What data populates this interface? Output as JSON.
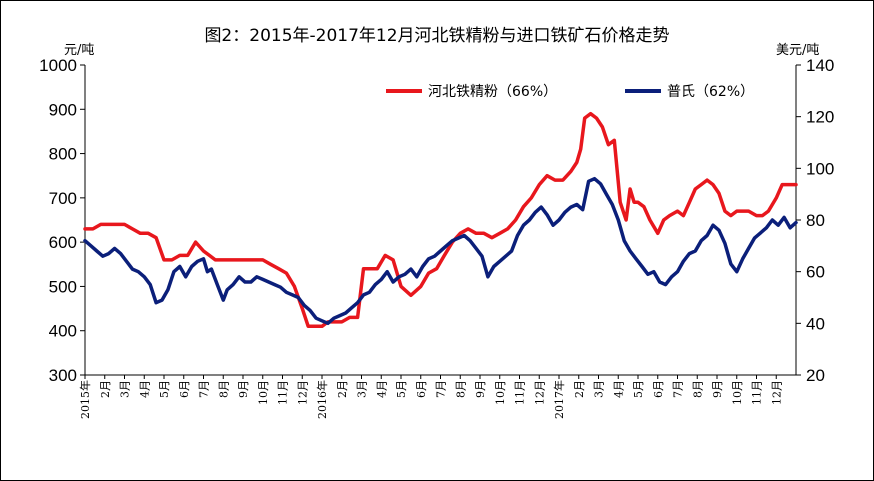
{
  "chart_data": {
    "type": "line",
    "title": "图2：2015年-2017年12月河北铁精粉与进口铁矿石价格走势",
    "left_axis": {
      "unit_label": "元/吨",
      "range": [
        300,
        1000
      ],
      "ticks": [
        "300",
        "400",
        "500",
        "600",
        "700",
        "800",
        "900",
        "1000"
      ]
    },
    "right_axis": {
      "unit_label": "美元/吨",
      "range": [
        20,
        140
      ],
      "ticks": [
        "20",
        "40",
        "60",
        "80",
        "100",
        "120",
        "140"
      ]
    },
    "x_range": [
      0,
      36
    ],
    "x_tick_labels": [
      "2015年",
      "2月",
      "3月",
      "4月",
      "5月",
      "6月",
      "7月",
      "8月",
      "9月",
      "10月",
      "11月",
      "12月",
      "2016年",
      "2月",
      "3月",
      "4月",
      "5月",
      "6月",
      "7月",
      "8月",
      "9月",
      "10月",
      "11月",
      "12月",
      "2017年",
      "2月",
      "3月",
      "4月",
      "5月",
      "6月",
      "7月",
      "8月",
      "9月",
      "10月",
      "11月",
      "12月"
    ],
    "legend_position": "top-right",
    "series": [
      {
        "name": "河北铁精粉（66%）",
        "axis": "left",
        "color": "#e8171d",
        "x": [
          0,
          0.4,
          0.8,
          1.2,
          1.6,
          2,
          2.4,
          2.8,
          3.2,
          3.6,
          4,
          4.4,
          4.8,
          5.2,
          5.6,
          6,
          6.3,
          6.6,
          7,
          7.4,
          7.8,
          8.2,
          8.6,
          9,
          9.4,
          9.8,
          10.2,
          10.6,
          11,
          11.3,
          11.6,
          12,
          12.3,
          12.6,
          13,
          13.4,
          13.8,
          14.1,
          14.5,
          14.8,
          15.2,
          15.6,
          16,
          16.5,
          17,
          17.4,
          17.8,
          18.2,
          18.6,
          19,
          19.4,
          19.8,
          20.2,
          20.6,
          21,
          21.4,
          21.8,
          22.2,
          22.6,
          23,
          23.4,
          23.8,
          24.2,
          24.6,
          24.9,
          25.1,
          25.3,
          25.6,
          25.9,
          26.2,
          26.5,
          26.8,
          27.1,
          27.4,
          27.6,
          27.8,
          28,
          28.3,
          28.6,
          29,
          29.3,
          29.6,
          30,
          30.3,
          30.6,
          30.9,
          31.2,
          31.5,
          31.8,
          32.1,
          32.4,
          32.7,
          33,
          33.3,
          33.6,
          34,
          34.3,
          34.6,
          35,
          35.3,
          35.6,
          36
        ],
        "values": [
          630,
          630,
          640,
          640,
          640,
          640,
          630,
          620,
          620,
          610,
          560,
          560,
          570,
          570,
          600,
          580,
          570,
          560,
          560,
          560,
          560,
          560,
          560,
          560,
          550,
          540,
          530,
          500,
          450,
          410,
          410,
          410,
          420,
          420,
          420,
          430,
          430,
          540,
          540,
          540,
          570,
          560,
          500,
          480,
          500,
          530,
          540,
          570,
          600,
          620,
          630,
          620,
          620,
          610,
          620,
          630,
          650,
          680,
          700,
          730,
          750,
          740,
          740,
          760,
          780,
          810,
          880,
          890,
          880,
          860,
          820,
          830,
          690,
          650,
          720,
          690,
          690,
          680,
          650,
          620,
          650,
          660,
          670,
          660,
          690,
          720,
          730,
          740,
          730,
          710,
          670,
          660,
          670,
          670,
          670,
          660,
          660,
          670,
          700,
          730,
          730,
          730
        ]
      },
      {
        "name": "普氏（62%）",
        "axis": "right",
        "color": "#0b1f7a",
        "x": [
          0,
          0.3,
          0.6,
          0.9,
          1.2,
          1.5,
          1.8,
          2.1,
          2.4,
          2.7,
          3,
          3.3,
          3.6,
          3.9,
          4.2,
          4.5,
          4.8,
          5.1,
          5.4,
          5.7,
          6,
          6.2,
          6.4,
          6.7,
          7,
          7.2,
          7.5,
          7.8,
          8.1,
          8.4,
          8.7,
          9,
          9.3,
          9.6,
          9.9,
          10.2,
          10.5,
          10.8,
          11.1,
          11.4,
          11.7,
          12,
          12.3,
          12.6,
          12.9,
          13.2,
          13.5,
          13.8,
          14.1,
          14.4,
          14.7,
          15,
          15.3,
          15.6,
          15.9,
          16.2,
          16.5,
          16.8,
          17.1,
          17.4,
          17.7,
          18,
          18.3,
          18.6,
          18.9,
          19.2,
          19.5,
          19.8,
          20.1,
          20.4,
          20.7,
          21,
          21.3,
          21.6,
          21.9,
          22.2,
          22.5,
          22.8,
          23.1,
          23.4,
          23.7,
          24,
          24.3,
          24.6,
          24.9,
          25.2,
          25.5,
          25.8,
          26.1,
          26.4,
          26.7,
          27,
          27.3,
          27.6,
          27.9,
          28.2,
          28.5,
          28.8,
          29.1,
          29.4,
          29.7,
          30,
          30.3,
          30.6,
          30.9,
          31.2,
          31.5,
          31.8,
          32.1,
          32.4,
          32.7,
          33,
          33.3,
          33.6,
          33.9,
          34.2,
          34.5,
          34.8,
          35.1,
          35.4,
          35.7,
          36
        ],
        "values": [
          72,
          70,
          68,
          66,
          67,
          69,
          67,
          64,
          61,
          60,
          58,
          55,
          48,
          49,
          53,
          60,
          62,
          58,
          62,
          64,
          65,
          60,
          61,
          55,
          49,
          53,
          55,
          58,
          56,
          56,
          58,
          57,
          56,
          55,
          54,
          52,
          51,
          50,
          47,
          45,
          42,
          41,
          40,
          42,
          43,
          44,
          46,
          48,
          51,
          52,
          55,
          57,
          60,
          56,
          58,
          59,
          61,
          58,
          62,
          65,
          66,
          68,
          70,
          72,
          73,
          74,
          72,
          69,
          66,
          58,
          62,
          64,
          66,
          68,
          74,
          78,
          80,
          83,
          85,
          82,
          78,
          80,
          83,
          85,
          86,
          84,
          95,
          96,
          94,
          90,
          86,
          80,
          72,
          68,
          65,
          62,
          59,
          60,
          56,
          55,
          58,
          60,
          64,
          67,
          68,
          72,
          74,
          78,
          76,
          71,
          63,
          60,
          65,
          69,
          73,
          75,
          77,
          80,
          78,
          81,
          77,
          79
        ]
      }
    ]
  }
}
